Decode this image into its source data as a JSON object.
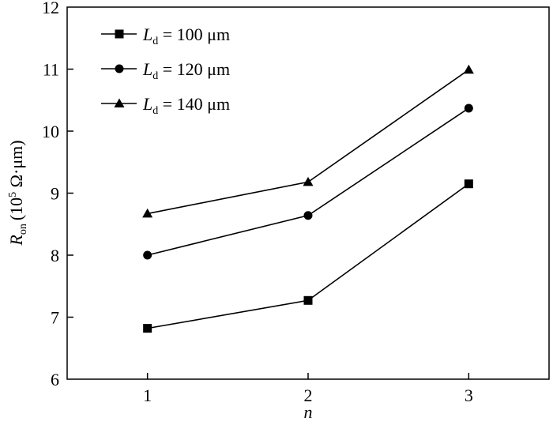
{
  "chart_data": {
    "type": "line",
    "title": "",
    "x": [
      1,
      2,
      3
    ],
    "x_ticks": [
      "1",
      "2",
      "3"
    ],
    "xlim": [
      0.5,
      3.5
    ],
    "xlabel": "n",
    "ylabel": {
      "main": "R",
      "sub": "on",
      "open": "(10",
      "sup": "5",
      "rest": " Ω·μm)"
    },
    "ylim": [
      6,
      12
    ],
    "y_ticks": [
      "6",
      "7",
      "8",
      "9",
      "10",
      "11",
      "12"
    ],
    "grid": false,
    "legend_position": "top-left",
    "series": [
      {
        "name": "L_d = 100 μm",
        "label_main": "L",
        "label_sub": "d",
        "label_rest": " = 100 μm",
        "marker": "square",
        "values": [
          6.82,
          7.27,
          9.15
        ]
      },
      {
        "name": "L_d = 120 μm",
        "label_main": "L",
        "label_sub": "d",
        "label_rest": " = 120 μm",
        "marker": "circle",
        "values": [
          8.0,
          8.64,
          10.37
        ]
      },
      {
        "name": "L_d = 140 μm",
        "label_main": "L",
        "label_sub": "d",
        "label_rest": " = 140 μm",
        "marker": "triangle",
        "values": [
          8.67,
          9.18,
          10.99
        ]
      }
    ],
    "colors": {
      "line": "#000000",
      "marker": "#000000"
    }
  }
}
